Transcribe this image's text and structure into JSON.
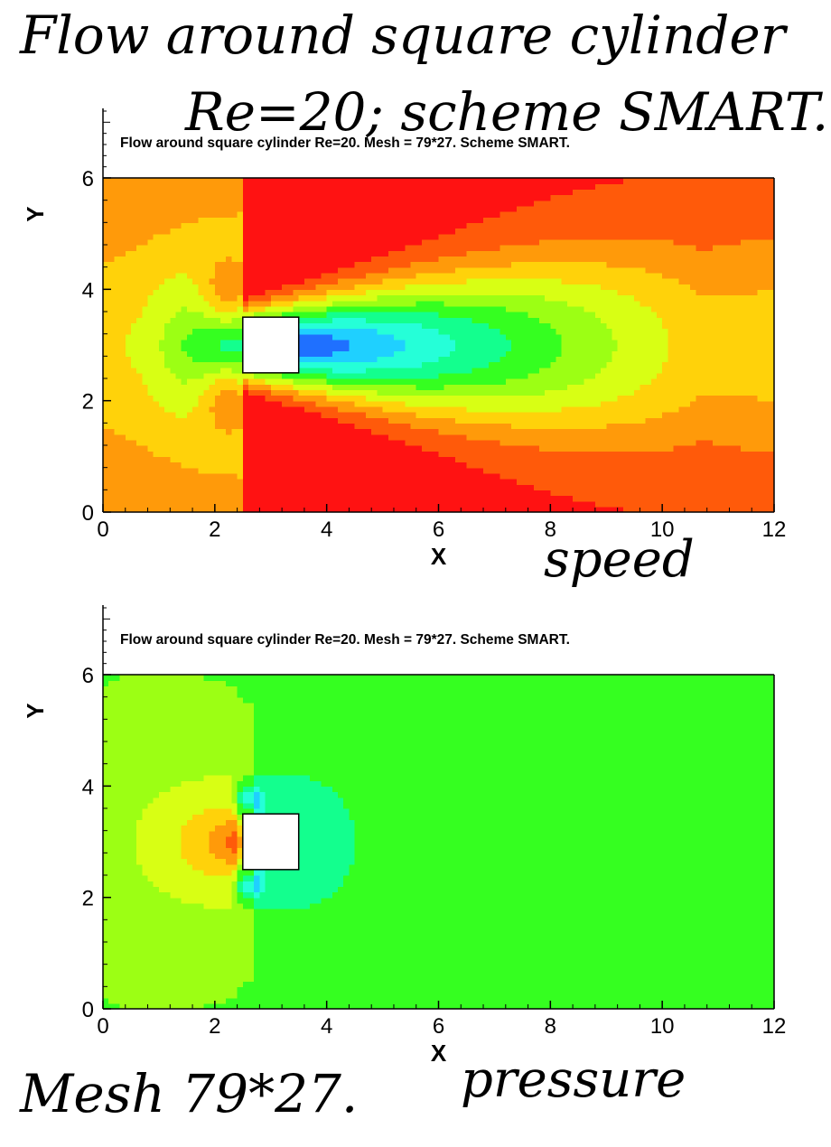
{
  "page": {
    "title_line1": "Flow around square cylinder",
    "title_line2": "Re=20; scheme SMART.",
    "mesh_caption": "Mesh 79*27."
  },
  "chart_data": [
    {
      "type": "heatmap",
      "field": "speed",
      "caption": "speed",
      "title": "Flow around square cylinder Re=20. Mesh = 79*27. Scheme SMART.",
      "xlabel": "X",
      "ylabel": "Y",
      "xlim": [
        0,
        12
      ],
      "ylim": [
        0,
        6
      ],
      "xticks": [
        0,
        2,
        4,
        6,
        8,
        10,
        12
      ],
      "yticks": [
        0,
        2,
        4,
        6
      ],
      "obstacle": {
        "x": [
          2.5,
          3.5
        ],
        "y": [
          2.5,
          3.5
        ]
      },
      "colors": [
        "#0a14e6",
        "#1f70ff",
        "#1fd0ff",
        "#25ffd8",
        "#13ff8e",
        "#35ff20",
        "#9cff14",
        "#d8ff14",
        "#ffd20a",
        "#ff9a0a",
        "#ff5a0a",
        "#ff1212"
      ]
    },
    {
      "type": "heatmap",
      "field": "pressure",
      "caption": "pressure",
      "title": "Flow around square cylinder Re=20. Mesh = 79*27. Scheme SMART.",
      "xlabel": "X",
      "ylabel": "Y",
      "xlim": [
        0,
        12
      ],
      "ylim": [
        0,
        6
      ],
      "xticks": [
        0,
        2,
        4,
        6,
        8,
        10,
        12
      ],
      "yticks": [
        0,
        2,
        4,
        6
      ],
      "obstacle": {
        "x": [
          2.5,
          3.5
        ],
        "y": [
          2.5,
          3.5
        ]
      },
      "colors": [
        "#0a14e6",
        "#1f70ff",
        "#1fd0ff",
        "#25ffd8",
        "#13ff8e",
        "#35ff20",
        "#9cff14",
        "#d8ff14",
        "#ffd20a",
        "#ff9a0a",
        "#ff5a0a",
        "#ff1212"
      ]
    }
  ]
}
